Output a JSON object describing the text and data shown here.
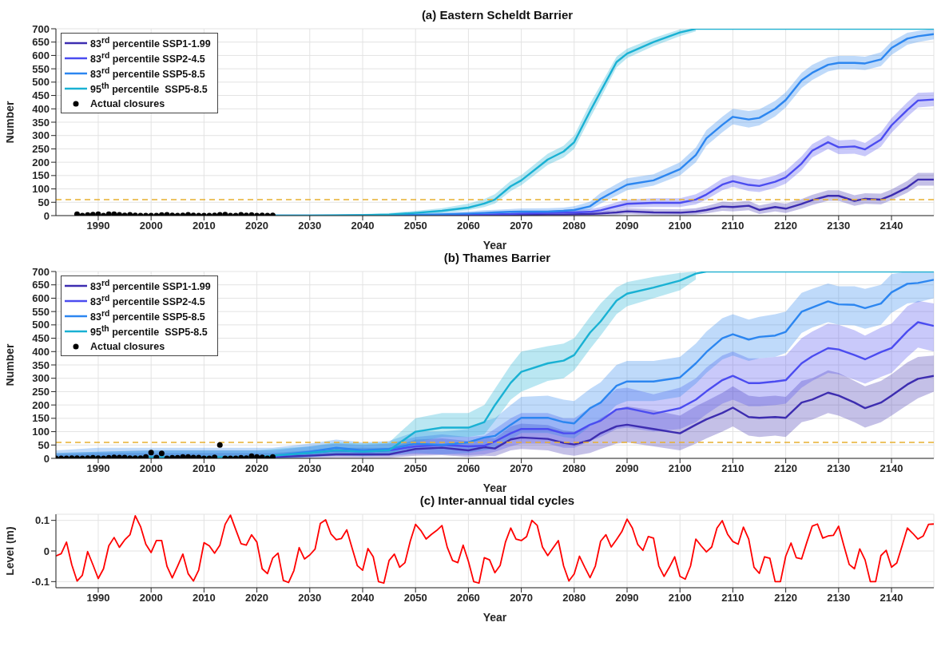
{
  "chart_data": [
    {
      "type": "line",
      "title": "(a) Eastern Scheldt  Barrier",
      "xlabel": "Year",
      "ylabel": "Number",
      "xlim": [
        1982,
        2148
      ],
      "xticks": [
        1990,
        2000,
        2010,
        2020,
        2030,
        2040,
        2050,
        2060,
        2070,
        2080,
        2090,
        2100,
        2110,
        2120,
        2130,
        2140
      ],
      "ylim": [
        0,
        700
      ],
      "yticks": [
        0,
        50,
        100,
        150,
        200,
        250,
        300,
        350,
        400,
        450,
        500,
        550,
        600,
        650,
        700
      ],
      "grid": true,
      "legend": "top left",
      "x": [
        2023,
        2030,
        2035,
        2040,
        2045,
        2050,
        2055,
        2060,
        2063,
        2065,
        2068,
        2070,
        2075,
        2078,
        2080,
        2083,
        2085,
        2088,
        2090,
        2095,
        2100,
        2103,
        2105,
        2108,
        2110,
        2113,
        2115,
        2118,
        2120,
        2123,
        2125,
        2128,
        2130,
        2133,
        2135,
        2138,
        2140,
        2143,
        2145,
        2148
      ],
      "ref_lines": [
        {
          "axis": "y",
          "value": 60,
          "color": "#e8b030",
          "line_style": "dashed"
        }
      ],
      "series": [
        {
          "name": "83$^{rd}$ percentile SSP1-1.99",
          "color": "#3d2db0",
          "values": [
            null,
            null,
            null,
            null,
            0,
            0,
            0,
            1,
            1,
            2,
            2,
            3,
            4,
            4,
            5,
            6,
            8,
            12,
            16,
            12,
            11,
            15,
            21,
            34,
            32,
            37,
            21,
            32,
            26,
            44,
            58,
            74,
            74,
            55,
            63,
            60,
            76,
            106,
            135,
            135
          ],
          "lower": [
            0,
            0,
            0,
            0,
            0,
            0,
            0,
            0,
            0,
            0,
            0,
            0,
            0,
            0,
            0,
            0,
            0,
            2,
            5,
            2,
            1,
            4,
            8,
            18,
            16,
            20,
            6,
            16,
            10,
            26,
            40,
            55,
            55,
            37,
            44,
            42,
            58,
            86,
            112,
            112
          ],
          "upper": [
            1,
            1,
            1,
            1,
            1,
            2,
            2,
            3,
            3,
            4,
            5,
            6,
            8,
            8,
            10,
            12,
            15,
            22,
            28,
            25,
            24,
            28,
            36,
            52,
            50,
            55,
            38,
            50,
            45,
            62,
            78,
            95,
            95,
            76,
            84,
            82,
            98,
            130,
            160,
            160
          ]
        },
        {
          "name": "83$^{rd}$ percentile SSP2-4.5",
          "color": "#4b4cf0",
          "values": [
            null,
            null,
            null,
            null,
            null,
            1,
            2,
            3,
            4,
            5,
            6,
            8,
            10,
            12,
            12,
            14,
            20,
            35,
            44,
            48,
            48,
            60,
            79,
            116,
            129,
            115,
            111,
            127,
            143,
            195,
            243,
            275,
            256,
            259,
            248,
            285,
            338,
            396,
            431,
            435
          ],
          "lower": [
            0,
            0,
            0,
            0,
            0,
            0,
            0,
            1,
            1,
            2,
            2,
            3,
            4,
            5,
            5,
            6,
            10,
            22,
            30,
            32,
            32,
            42,
            60,
            95,
            108,
            92,
            88,
            104,
            120,
            170,
            218,
            250,
            230,
            232,
            222,
            258,
            310,
            370,
            405,
            410
          ],
          "upper": [
            1,
            1,
            2,
            2,
            3,
            4,
            5,
            6,
            8,
            10,
            12,
            15,
            18,
            22,
            22,
            25,
            32,
            50,
            60,
            65,
            65,
            80,
            100,
            138,
            152,
            140,
            135,
            150,
            168,
            222,
            268,
            300,
            282,
            285,
            272,
            312,
            365,
            425,
            460,
            462
          ]
        },
        {
          "name": "83$^{rd}$ percentile SSP5-8.5",
          "color": "#2c86f0",
          "values": [
            0,
            0,
            0,
            1,
            2,
            3,
            5,
            8,
            10,
            12,
            14,
            15,
            15,
            18,
            21,
            35,
            63,
            95,
            116,
            132,
            174,
            227,
            290,
            340,
            370,
            360,
            366,
            400,
            433,
            507,
            535,
            565,
            572,
            572,
            570,
            585,
            628,
            663,
            672,
            680
          ],
          "lower": [
            0,
            0,
            0,
            0,
            0,
            0,
            1,
            2,
            3,
            5,
            6,
            7,
            8,
            10,
            12,
            22,
            45,
            75,
            95,
            112,
            150,
            200,
            262,
            312,
            342,
            330,
            338,
            372,
            405,
            478,
            508,
            540,
            548,
            548,
            545,
            560,
            602,
            640,
            650,
            660
          ],
          "upper": [
            2,
            2,
            3,
            4,
            6,
            8,
            12,
            16,
            20,
            22,
            25,
            27,
            28,
            30,
            35,
            52,
            85,
            118,
            140,
            155,
            200,
            255,
            320,
            370,
            400,
            392,
            398,
            430,
            462,
            535,
            565,
            592,
            598,
            598,
            595,
            612,
            652,
            685,
            692,
            700
          ]
        },
        {
          "name": "95$^{th}$ percentile  SSP5-8.5",
          "color": "#19b1d3",
          "values": [
            0,
            0,
            1,
            2,
            4,
            10,
            18,
            30,
            45,
            60,
            110,
            132,
            210,
            240,
            275,
            391,
            465,
            575,
            607,
            650,
            686,
            700,
            700,
            700,
            700,
            700,
            700,
            700,
            700,
            700,
            700,
            700,
            700,
            700,
            700,
            700,
            700,
            700,
            700,
            700
          ],
          "lower": [
            0,
            0,
            0,
            0,
            1,
            5,
            10,
            20,
            32,
            45,
            92,
            114,
            190,
            218,
            250,
            365,
            440,
            555,
            590,
            635,
            672,
            690,
            null,
            null,
            null,
            null,
            null,
            null,
            null,
            null,
            null,
            null,
            null,
            null,
            null,
            null,
            null,
            null,
            null,
            null
          ],
          "upper": [
            2,
            3,
            4,
            6,
            10,
            18,
            28,
            45,
            62,
            80,
            130,
            152,
            232,
            262,
            300,
            420,
            490,
            595,
            625,
            665,
            698,
            700,
            null,
            null,
            null,
            null,
            null,
            null,
            null,
            null,
            null,
            null,
            null,
            null,
            null,
            null,
            null,
            null,
            null,
            null
          ]
        },
        {
          "name": "Actual closures",
          "type": "scatter",
          "marker": "circle",
          "color": "#000000",
          "x": [
            1986,
            1987,
            1988,
            1989,
            1990,
            1991,
            1992,
            1993,
            1994,
            1995,
            1996,
            1997,
            1998,
            1999,
            2000,
            2001,
            2002,
            2003,
            2004,
            2005,
            2006,
            2007,
            2008,
            2009,
            2010,
            2011,
            2012,
            2013,
            2014,
            2015,
            2016,
            2017,
            2018,
            2019,
            2020,
            2021,
            2022,
            2023
          ],
          "values": [
            5,
            0,
            2,
            4,
            5,
            0,
            5,
            5,
            3,
            1,
            3,
            1,
            0,
            0,
            0,
            0,
            2,
            3,
            1,
            0,
            1,
            3,
            1,
            0,
            0,
            0,
            1,
            3,
            4,
            0,
            0,
            3,
            1,
            2,
            0,
            1,
            0,
            1
          ]
        }
      ]
    },
    {
      "type": "line",
      "title": "(b) Thames Barrier",
      "xlabel": "Year",
      "ylabel": "Number",
      "xlim": [
        1982,
        2148
      ],
      "xticks": [
        1990,
        2000,
        2010,
        2020,
        2030,
        2040,
        2050,
        2060,
        2070,
        2080,
        2090,
        2100,
        2110,
        2120,
        2130,
        2140
      ],
      "ylim": [
        0,
        700
      ],
      "yticks": [
        0,
        50,
        100,
        150,
        200,
        250,
        300,
        350,
        400,
        450,
        500,
        550,
        600,
        650,
        700
      ],
      "grid": true,
      "legend": "top left",
      "x": [
        1982,
        1990,
        2000,
        2010,
        2020,
        2023,
        2030,
        2035,
        2040,
        2045,
        2050,
        2055,
        2060,
        2063,
        2065,
        2068,
        2070,
        2075,
        2078,
        2080,
        2083,
        2085,
        2088,
        2090,
        2095,
        2100,
        2103,
        2105,
        2108,
        2110,
        2113,
        2115,
        2118,
        2120,
        2123,
        2125,
        2128,
        2130,
        2133,
        2135,
        2138,
        2140,
        2143,
        2145,
        2148
      ],
      "ref_lines": [
        {
          "axis": "y",
          "value": 60,
          "color": "#e8b030",
          "line_style": "dashed"
        }
      ],
      "series": [
        {
          "name": "83$^{rd}$ percentile SSP1-1.99",
          "color": "#3d2db0",
          "values": [
            null,
            null,
            null,
            null,
            null,
            5,
            10,
            15,
            15,
            15,
            35,
            40,
            30,
            42,
            37,
            71,
            78,
            73,
            58,
            52,
            68,
            94,
            120,
            126,
            110,
            94,
            126,
            146,
            170,
            190,
            155,
            152,
            155,
            152,
            209,
            220,
            246,
            235,
            209,
            188,
            209,
            235,
            277,
            298,
            309
          ],
          "lower": [
            0,
            0,
            0,
            0,
            0,
            0,
            0,
            2,
            2,
            2,
            10,
            12,
            5,
            10,
            8,
            30,
            35,
            30,
            15,
            10,
            20,
            35,
            55,
            60,
            45,
            30,
            55,
            75,
            100,
            120,
            85,
            80,
            85,
            80,
            135,
            145,
            170,
            160,
            135,
            115,
            135,
            160,
            200,
            225,
            250
          ],
          "upper": [
            15,
            20,
            20,
            20,
            20,
            20,
            30,
            40,
            40,
            40,
            70,
            75,
            65,
            80,
            75,
            120,
            130,
            125,
            105,
            100,
            120,
            150,
            185,
            195,
            180,
            160,
            195,
            215,
            245,
            270,
            235,
            230,
            235,
            230,
            290,
            300,
            330,
            320,
            290,
            270,
            290,
            315,
            360,
            380,
            385
          ]
        },
        {
          "name": "83$^{rd}$ percentile SSP2-4.5",
          "color": "#4b4cf0",
          "values": [
            null,
            null,
            null,
            null,
            null,
            8,
            20,
            30,
            25,
            30,
            45,
            50,
            45,
            47,
            63,
            94,
            110,
            110,
            94,
            94,
            126,
            141,
            183,
            188,
            167,
            188,
            220,
            251,
            293,
            309,
            282,
            282,
            288,
            293,
            356,
            382,
            413,
            408,
            387,
            371,
            398,
            413,
            476,
            510,
            496
          ],
          "lower": [
            0,
            0,
            0,
            0,
            0,
            0,
            5,
            10,
            8,
            10,
            15,
            15,
            12,
            15,
            25,
            45,
            55,
            55,
            40,
            40,
            65,
            80,
            110,
            115,
            100,
            110,
            135,
            165,
            205,
            220,
            195,
            195,
            200,
            205,
            265,
            290,
            320,
            315,
            295,
            280,
            305,
            320,
            380,
            415,
            400
          ],
          "upper": [
            20,
            25,
            30,
            30,
            30,
            30,
            45,
            55,
            50,
            55,
            80,
            90,
            80,
            85,
            110,
            150,
            170,
            170,
            150,
            150,
            190,
            210,
            260,
            265,
            240,
            265,
            300,
            340,
            385,
            400,
            375,
            375,
            380,
            385,
            450,
            475,
            505,
            500,
            480,
            460,
            490,
            505,
            570,
            590,
            580
          ]
        },
        {
          "name": "83$^{rd}$ percentile SSP5-8.5",
          "color": "#2c86f0",
          "values": [
            null,
            null,
            null,
            null,
            null,
            10,
            25,
            40,
            30,
            35,
            55,
            50,
            60,
            78,
            84,
            126,
            152,
            152,
            136,
            131,
            188,
            209,
            272,
            288,
            288,
            303,
            356,
            398,
            450,
            465,
            445,
            455,
            460,
            474,
            549,
            565,
            588,
            577,
            575,
            563,
            580,
            622,
            654,
            657,
            669
          ],
          "lower": [
            0,
            0,
            0,
            0,
            0,
            0,
            5,
            15,
            10,
            12,
            20,
            15,
            20,
            30,
            35,
            70,
            95,
            95,
            80,
            75,
            120,
            140,
            200,
            215,
            215,
            230,
            280,
            320,
            370,
            385,
            365,
            375,
            380,
            395,
            470,
            490,
            510,
            500,
            498,
            485,
            500,
            545,
            580,
            585,
            600
          ],
          "upper": [
            30,
            40,
            40,
            40,
            40,
            40,
            55,
            70,
            60,
            65,
            100,
            100,
            110,
            140,
            150,
            200,
            230,
            235,
            220,
            215,
            260,
            285,
            350,
            365,
            365,
            380,
            430,
            475,
            525,
            540,
            520,
            530,
            540,
            550,
            620,
            635,
            655,
            645,
            645,
            635,
            650,
            690,
            700,
            700,
            700
          ]
        },
        {
          "name": "95$^{th}$ percentile  SSP5-8.5",
          "color": "#19b1d3",
          "values": [
            2,
            3,
            5,
            5,
            5,
            10,
            20,
            30,
            25,
            30,
            100,
            115,
            115,
            136,
            199,
            283,
            324,
            356,
            366,
            387,
            471,
            513,
            591,
            617,
            640,
            666,
            692,
            700,
            700,
            700,
            700,
            700,
            700,
            700,
            700,
            700,
            700,
            700,
            700,
            700,
            700,
            700,
            700,
            700,
            700
          ],
          "lower": [
            0,
            0,
            0,
            0,
            0,
            0,
            5,
            10,
            10,
            12,
            60,
            80,
            80,
            90,
            140,
            220,
            250,
            290,
            300,
            330,
            410,
            460,
            540,
            570,
            600,
            630,
            670,
            null,
            null,
            null,
            null,
            null,
            null,
            null,
            null,
            null,
            null,
            null,
            null,
            null,
            null,
            null,
            null,
            null,
            null
          ],
          "upper": [
            20,
            25,
            30,
            30,
            30,
            35,
            45,
            60,
            55,
            60,
            150,
            170,
            170,
            200,
            260,
            350,
            400,
            420,
            430,
            450,
            530,
            580,
            640,
            660,
            680,
            695,
            700,
            null,
            null,
            null,
            null,
            null,
            null,
            null,
            null,
            null,
            null,
            null,
            null,
            null,
            null,
            null,
            null,
            null,
            null
          ]
        },
        {
          "name": "Actual closures",
          "type": "scatter",
          "marker": "circle",
          "color": "#000000",
          "x": [
            1982,
            1983,
            1984,
            1985,
            1986,
            1987,
            1988,
            1989,
            1990,
            1991,
            1992,
            1993,
            1994,
            1995,
            1996,
            1997,
            1998,
            1999,
            2000,
            2001,
            2002,
            2003,
            2004,
            2005,
            2006,
            2007,
            2008,
            2009,
            2010,
            2011,
            2012,
            2013,
            2014,
            2015,
            2016,
            2017,
            2018,
            2019,
            2020,
            2021,
            2022,
            2023
          ],
          "values": [
            0,
            0,
            0,
            1,
            1,
            0,
            1,
            2,
            1,
            0,
            2,
            4,
            3,
            3,
            1,
            1,
            1,
            5,
            22,
            3,
            19,
            0,
            2,
            2,
            5,
            5,
            3,
            3,
            0,
            0,
            4,
            50,
            0,
            0,
            0,
            2,
            1,
            8,
            5,
            4,
            0,
            5
          ]
        }
      ]
    },
    {
      "type": "line",
      "title": "(c) Inter-annual tidal cycles",
      "xlabel": "Year",
      "ylabel": "Level (m)",
      "xlim": [
        1982,
        2148
      ],
      "xticks": [
        1990,
        2000,
        2010,
        2020,
        2030,
        2040,
        2050,
        2060,
        2070,
        2080,
        2090,
        2100,
        2110,
        2120,
        2130,
        2140
      ],
      "ylim": [
        -0.12,
        0.12
      ],
      "yticks": [
        -0.1,
        0,
        0.1
      ],
      "grid": true,
      "x": [
        1982,
        1983,
        1984,
        1985,
        1986,
        1987,
        1988,
        1989,
        1990,
        1991,
        1992,
        1993,
        1994,
        1995,
        1996,
        1997,
        1998,
        1999,
        2000,
        2001,
        2002,
        2003,
        2004,
        2005,
        2006,
        2007,
        2008,
        2009,
        2010,
        2011,
        2012,
        2013,
        2014,
        2015,
        2016,
        2017,
        2018,
        2019,
        2020,
        2021,
        2022,
        2023,
        2024,
        2025,
        2026,
        2027,
        2028,
        2029,
        2030,
        2031,
        2032,
        2033,
        2034,
        2035,
        2036,
        2037,
        2038,
        2039,
        2040,
        2041,
        2042,
        2043,
        2044,
        2045,
        2046,
        2047,
        2048,
        2049,
        2050,
        2051,
        2052,
        2053,
        2054,
        2055,
        2056,
        2057,
        2058,
        2059,
        2060,
        2061,
        2062,
        2063,
        2064,
        2065,
        2066,
        2067,
        2068,
        2069,
        2070,
        2071,
        2072,
        2073,
        2074,
        2075,
        2076,
        2077,
        2078,
        2079,
        2080,
        2081,
        2082,
        2083,
        2084,
        2085,
        2086,
        2087,
        2088,
        2089,
        2090,
        2091,
        2092,
        2093,
        2094,
        2095,
        2096,
        2097,
        2098,
        2099,
        2100,
        2101,
        2102,
        2103,
        2104,
        2105,
        2106,
        2107,
        2108,
        2109,
        2110,
        2111,
        2112,
        2113,
        2114,
        2115,
        2116,
        2117,
        2118,
        2119,
        2120,
        2121,
        2122,
        2123,
        2124,
        2125,
        2126,
        2127,
        2128,
        2129,
        2130,
        2131,
        2132,
        2133,
        2134,
        2135,
        2136,
        2137,
        2138,
        2139,
        2140,
        2141,
        2142,
        2143,
        2144,
        2145,
        2146,
        2147,
        2148
      ],
      "series": [
        {
          "color": "#ff0000",
          "values": [
            -0.016,
            -0.009,
            0.029,
            -0.045,
            -0.098,
            -0.079,
            -0.002,
            -0.045,
            -0.09,
            -0.058,
            0.017,
            0.044,
            0.012,
            0.036,
            0.053,
            0.115,
            0.08,
            0.022,
            -0.005,
            0.034,
            0.034,
            -0.05,
            -0.088,
            -0.05,
            -0.01,
            -0.074,
            -0.098,
            -0.062,
            0.027,
            0.017,
            -0.007,
            0.019,
            0.087,
            0.117,
            0.07,
            0.024,
            0.019,
            0.053,
            0.029,
            -0.058,
            -0.074,
            -0.023,
            -0.007,
            -0.096,
            -0.103,
            -0.064,
            0.011,
            -0.026,
            -0.013,
            0.006,
            0.09,
            0.102,
            0.056,
            0.037,
            0.041,
            0.069,
            0.01,
            -0.048,
            -0.063,
            0.008,
            -0.019,
            -0.1,
            -0.105,
            -0.031,
            -0.01,
            -0.053,
            -0.038,
            0.032,
            0.087,
            0.067,
            0.039,
            0.054,
            0.067,
            0.083,
            0.012,
            -0.031,
            -0.038,
            0.019,
            -0.034,
            -0.1,
            -0.105,
            -0.022,
            -0.029,
            -0.071,
            -0.047,
            0.029,
            0.075,
            0.039,
            0.034,
            0.047,
            0.1,
            0.084,
            0.013,
            -0.015,
            0.01,
            0.034,
            -0.049,
            -0.098,
            -0.075,
            -0.017,
            -0.053,
            -0.087,
            -0.049,
            0.032,
            0.053,
            0.013,
            0.037,
            0.063,
            0.104,
            0.075,
            0.022,
            0.002,
            0.047,
            0.042,
            -0.049,
            -0.083,
            -0.053,
            -0.019,
            -0.083,
            -0.092,
            -0.049,
            0.039,
            0.017,
            -0.003,
            0.013,
            0.075,
            0.099,
            0.055,
            0.031,
            0.022,
            0.078,
            0.039,
            -0.053,
            -0.073,
            -0.019,
            -0.024,
            -0.1,
            -0.1,
            -0.017,
            0.026,
            -0.022,
            -0.026,
            0.029,
            0.081,
            0.088,
            0.042,
            0.049,
            0.051,
            0.081,
            0.017,
            -0.044,
            -0.058,
            0.007,
            -0.029,
            -0.1,
            -0.1,
            -0.015,
            0.002,
            -0.053,
            -0.039,
            0.017,
            0.075,
            0.058,
            0.039,
            0.049,
            0.087,
            0.088
          ]
        }
      ]
    }
  ]
}
